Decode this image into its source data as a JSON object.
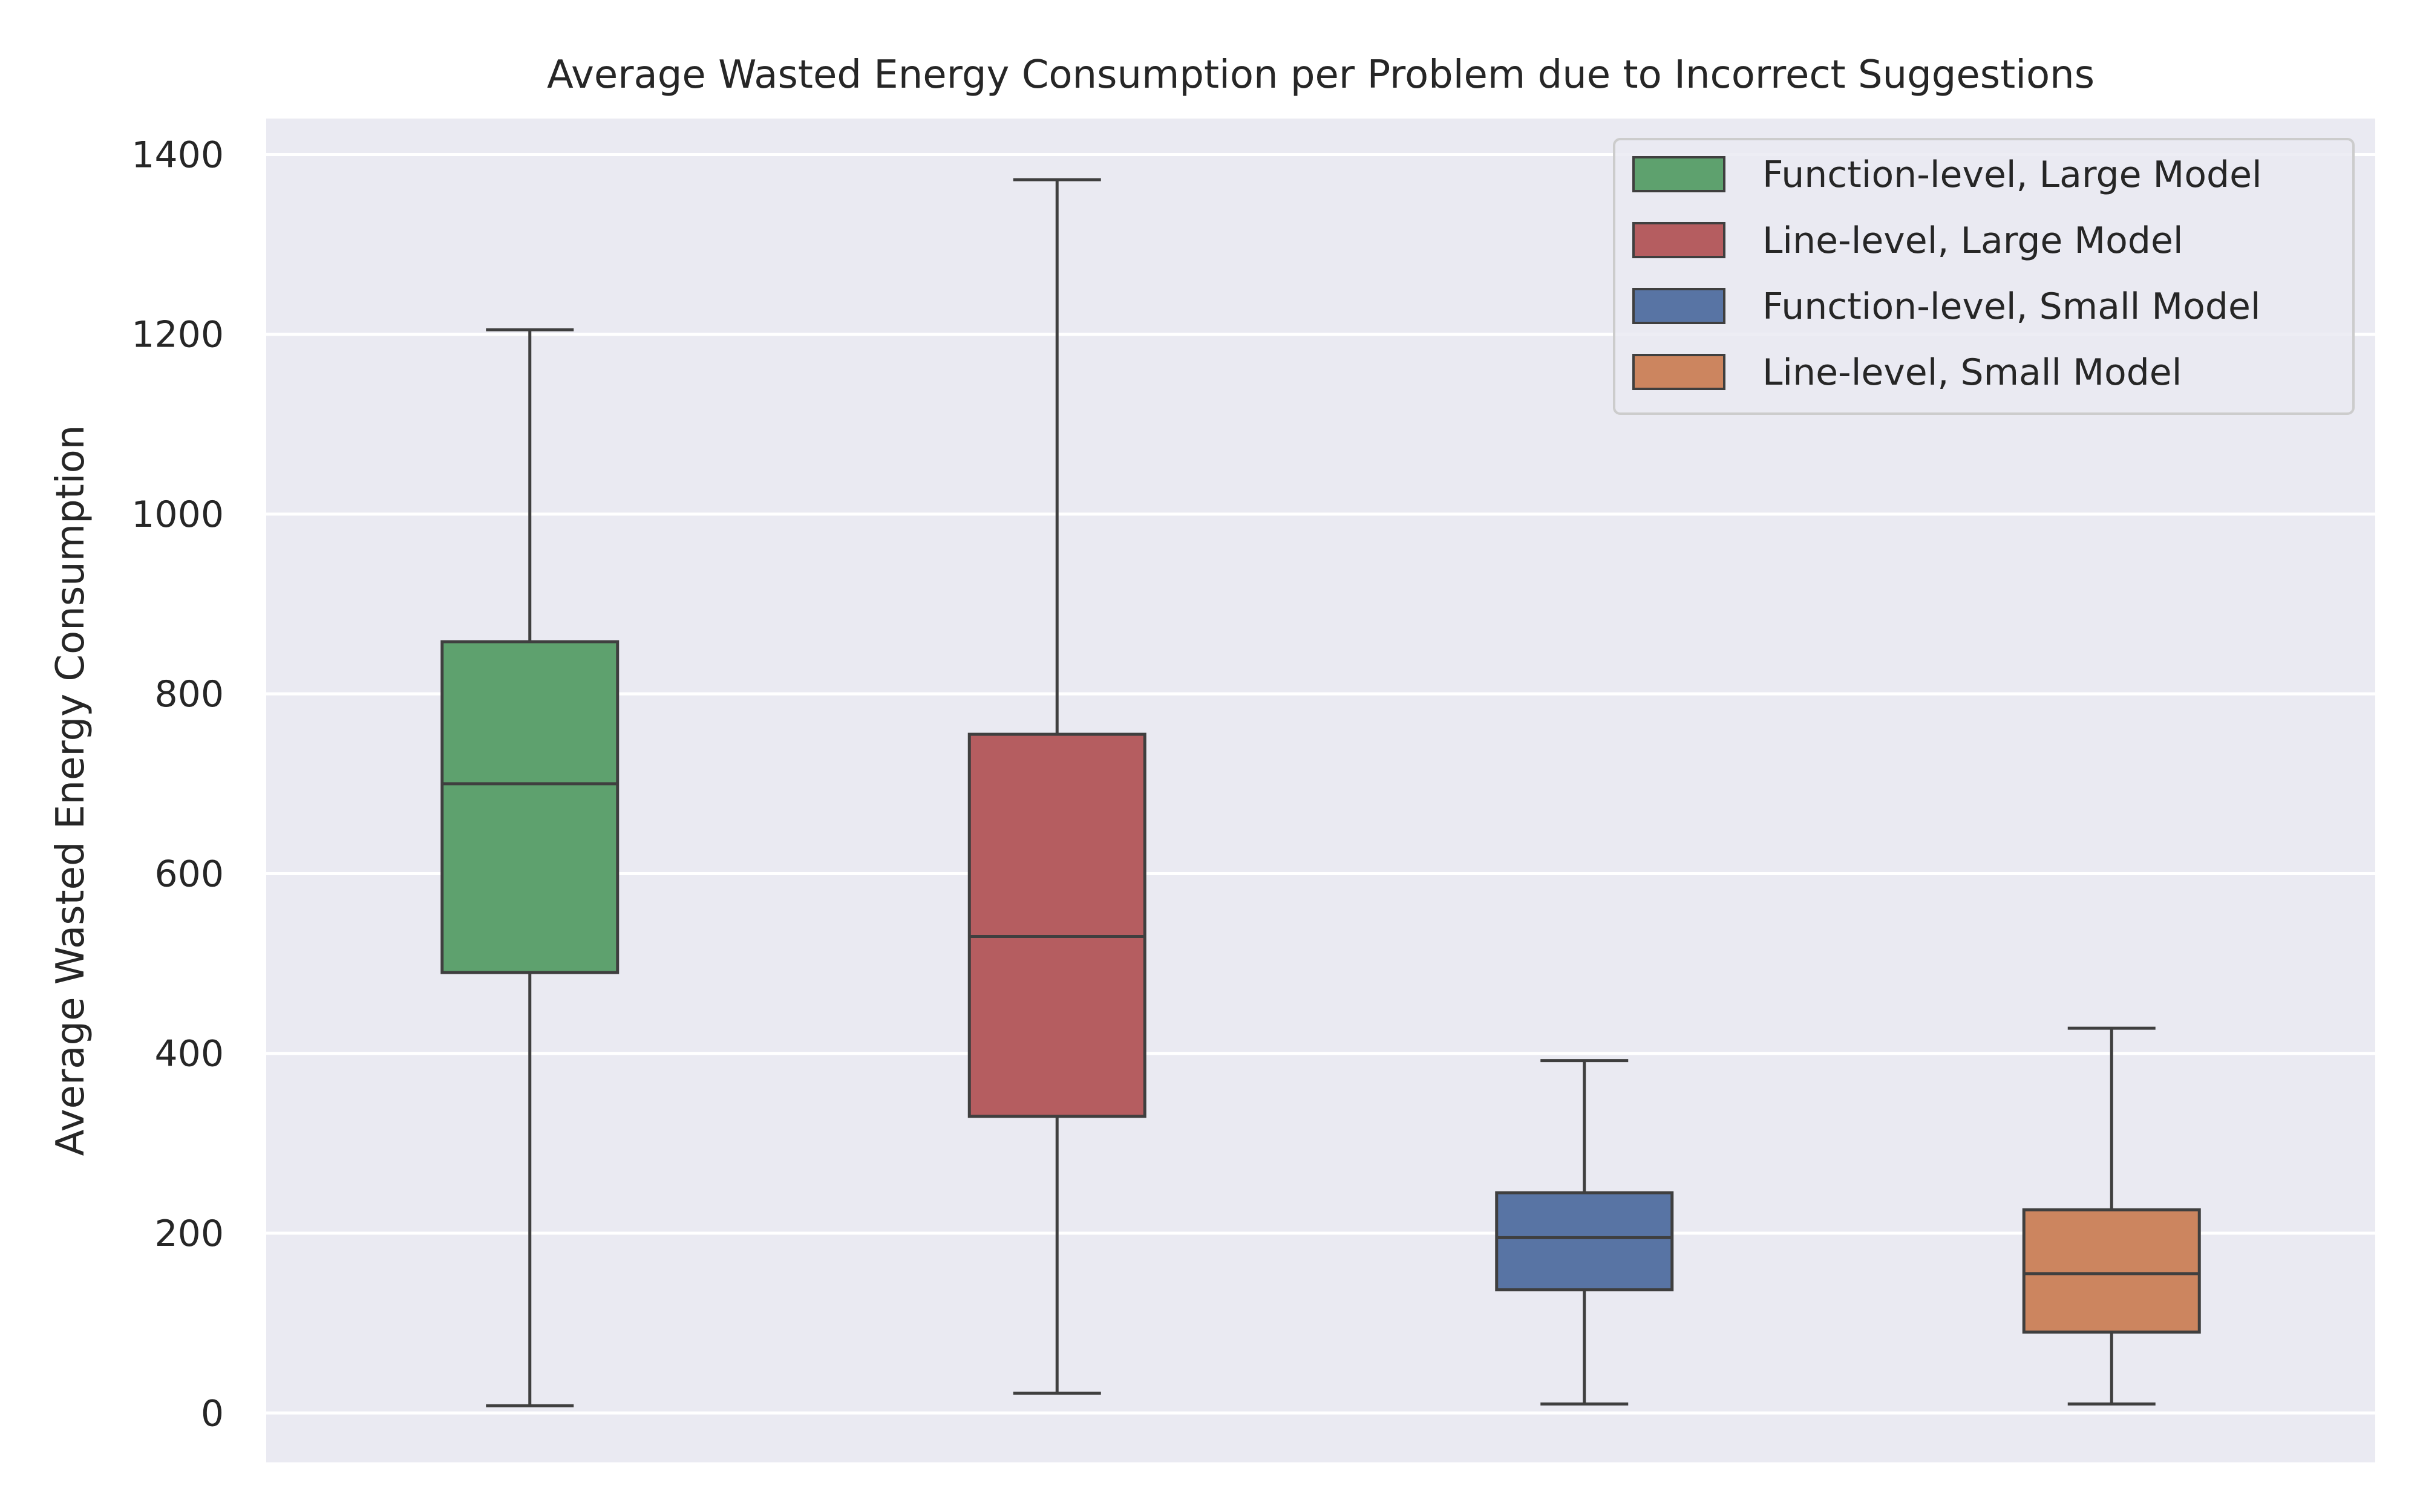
{
  "chart_data": {
    "type": "box",
    "title": "Average Wasted Energy Consumption per Problem due to Incorrect Suggestions",
    "xlabel": "",
    "ylabel": "Average Wasted Energy Consumption",
    "ylim": [
      -55,
      1440
    ],
    "yticks": [
      0,
      200,
      400,
      600,
      800,
      1000,
      1200,
      1400
    ],
    "grid": true,
    "legend_position": "top-right",
    "background_color": "#eaeaf2",
    "grid_color": "#ffffff",
    "line_color": "#3f3f3f",
    "series": [
      {
        "name": "Function-level, Large Model",
        "color": "#5ea16e",
        "whisker_low": 8,
        "q1": 490,
        "median": 700,
        "q3": 858,
        "whisker_high": 1205
      },
      {
        "name": "Line-level, Large Model",
        "color": "#b55d60",
        "whisker_low": 22,
        "q1": 330,
        "median": 530,
        "q3": 755,
        "whisker_high": 1372
      },
      {
        "name": "Function-level, Small Model",
        "color": "#5874a4",
        "whisker_low": 10,
        "q1": 137,
        "median": 195,
        "q3": 245,
        "whisker_high": 392
      },
      {
        "name": "Line-level, Small Model",
        "color": "#cc855f",
        "whisker_low": 10,
        "q1": 90,
        "median": 155,
        "q3": 226,
        "whisker_high": 428
      }
    ]
  }
}
